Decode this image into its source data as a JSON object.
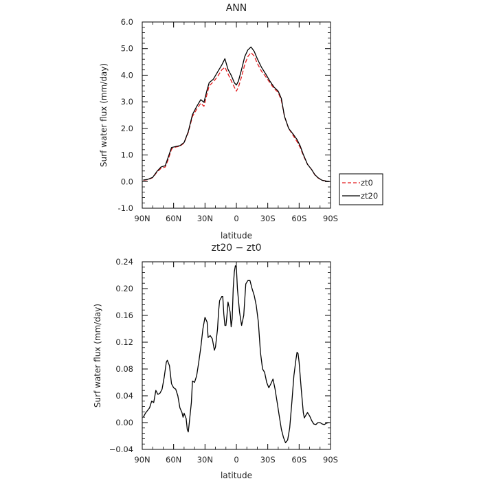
{
  "chart_data": [
    {
      "type": "line",
      "title": "ANN",
      "xlabel": "latitude",
      "ylabel": "Surf water flux (mm/day)",
      "xlim": [
        90,
        -90
      ],
      "ylim": [
        -1.0,
        6.0
      ],
      "x_ticks": [
        90,
        60,
        30,
        0,
        -30,
        -60,
        -90
      ],
      "x_tick_labels": [
        "90N",
        "60N",
        "30N",
        "0",
        "30S",
        "60S",
        "90S"
      ],
      "y_ticks": [
        -1.0,
        0.0,
        1.0,
        2.0,
        3.0,
        4.0,
        5.0,
        6.0
      ],
      "y_tick_labels": [
        "-1.0",
        "0.0",
        "1.0",
        "2.0",
        "3.0",
        "4.0",
        "5.0",
        "6.0"
      ],
      "legend": {
        "placement": "outside-right"
      },
      "series": [
        {
          "name": "zt0",
          "color": "#e41a1c",
          "dash": "dashed",
          "points": [
            [
              89,
              0.05
            ],
            [
              85,
              0.07
            ],
            [
              80,
              0.15
            ],
            [
              76,
              0.35
            ],
            [
              72,
              0.5
            ],
            [
              68,
              0.55
            ],
            [
              65,
              0.85
            ],
            [
              62,
              1.22
            ],
            [
              58,
              1.3
            ],
            [
              54,
              1.33
            ],
            [
              50,
              1.45
            ],
            [
              46,
              1.85
            ],
            [
              42,
              2.45
            ],
            [
              38,
              2.72
            ],
            [
              34,
              2.95
            ],
            [
              31,
              2.83
            ],
            [
              28,
              3.3
            ],
            [
              26,
              3.6
            ],
            [
              22,
              3.75
            ],
            [
              18,
              3.95
            ],
            [
              14,
              4.2
            ],
            [
              11,
              4.3
            ],
            [
              8,
              4.05
            ],
            [
              5,
              3.8
            ],
            [
              2,
              3.55
            ],
            [
              0,
              3.4
            ],
            [
              -2,
              3.55
            ],
            [
              -5,
              3.95
            ],
            [
              -8,
              4.4
            ],
            [
              -11,
              4.7
            ],
            [
              -14,
              4.85
            ],
            [
              -17,
              4.72
            ],
            [
              -20,
              4.45
            ],
            [
              -24,
              4.15
            ],
            [
              -28,
              3.95
            ],
            [
              -32,
              3.72
            ],
            [
              -36,
              3.5
            ],
            [
              -40,
              3.35
            ],
            [
              -43,
              3.05
            ],
            [
              -46,
              2.45
            ],
            [
              -50,
              2.0
            ],
            [
              -54,
              1.75
            ],
            [
              -58,
              1.5
            ],
            [
              -61,
              1.28
            ],
            [
              -64,
              0.98
            ],
            [
              -68,
              0.65
            ],
            [
              -72,
              0.45
            ],
            [
              -75,
              0.25
            ],
            [
              -78,
              0.14
            ],
            [
              -82,
              0.05
            ],
            [
              -86,
              0.02
            ],
            [
              -89,
              0.01
            ]
          ]
        },
        {
          "name": "zt20",
          "color": "#000000",
          "dash": "solid",
          "points": [
            [
              89,
              0.06
            ],
            [
              85,
              0.08
            ],
            [
              80,
              0.16
            ],
            [
              76,
              0.38
            ],
            [
              72,
              0.55
            ],
            [
              68,
              0.6
            ],
            [
              65,
              0.94
            ],
            [
              62,
              1.28
            ],
            [
              58,
              1.32
            ],
            [
              54,
              1.35
            ],
            [
              50,
              1.47
            ],
            [
              46,
              1.88
            ],
            [
              42,
              2.52
            ],
            [
              38,
              2.82
            ],
            [
              34,
              3.08
            ],
            [
              31,
              2.98
            ],
            [
              28,
              3.45
            ],
            [
              26,
              3.72
            ],
            [
              22,
              3.85
            ],
            [
              18,
              4.12
            ],
            [
              14,
              4.38
            ],
            [
              11,
              4.62
            ],
            [
              8,
              4.22
            ],
            [
              5,
              4.0
            ],
            [
              2,
              3.72
            ],
            [
              0,
              3.63
            ],
            [
              -2,
              3.78
            ],
            [
              -5,
              4.22
            ],
            [
              -8,
              4.7
            ],
            [
              -11,
              4.95
            ],
            [
              -14,
              5.06
            ],
            [
              -17,
              4.9
            ],
            [
              -20,
              4.62
            ],
            [
              -24,
              4.3
            ],
            [
              -28,
              4.05
            ],
            [
              -32,
              3.78
            ],
            [
              -36,
              3.55
            ],
            [
              -40,
              3.4
            ],
            [
              -43,
              3.12
            ],
            [
              -46,
              2.45
            ],
            [
              -50,
              2.0
            ],
            [
              -54,
              1.8
            ],
            [
              -58,
              1.58
            ],
            [
              -61,
              1.34
            ],
            [
              -64,
              1.02
            ],
            [
              -68,
              0.65
            ],
            [
              -72,
              0.45
            ],
            [
              -75,
              0.26
            ],
            [
              -78,
              0.15
            ],
            [
              -82,
              0.05
            ],
            [
              -86,
              0.02
            ],
            [
              -89,
              0.01
            ]
          ]
        }
      ]
    },
    {
      "type": "line",
      "title": "zt20 − zt0",
      "xlabel": "latitude",
      "ylabel": "Surf water flux (mm/day)",
      "xlim": [
        90,
        -90
      ],
      "ylim": [
        -0.04,
        0.24
      ],
      "x_ticks": [
        90,
        60,
        30,
        0,
        -30,
        -60,
        -90
      ],
      "x_tick_labels": [
        "90N",
        "60N",
        "30N",
        "0",
        "30S",
        "60S",
        "90S"
      ],
      "y_ticks": [
        -0.04,
        0.0,
        0.04,
        0.08,
        0.12,
        0.16,
        0.2,
        0.24
      ],
      "y_tick_labels": [
        "−0.04",
        "0.00",
        "0.04",
        "0.08",
        "0.12",
        "0.16",
        "0.20",
        "0.24"
      ],
      "series": [
        {
          "color": "#000000",
          "dash": "solid",
          "points": [
            [
              89,
              0.008
            ],
            [
              87,
              0.014
            ],
            [
              85,
              0.018
            ],
            [
              83,
              0.022
            ],
            [
              81,
              0.032
            ],
            [
              79,
              0.03
            ],
            [
              77,
              0.048
            ],
            [
              75,
              0.042
            ],
            [
              73,
              0.044
            ],
            [
              71,
              0.05
            ],
            [
              69,
              0.068
            ],
            [
              67,
              0.09
            ],
            [
              66,
              0.093
            ],
            [
              64,
              0.085
            ],
            [
              62,
              0.058
            ],
            [
              60,
              0.052
            ],
            [
              58,
              0.05
            ],
            [
              56,
              0.04
            ],
            [
              54,
              0.022
            ],
            [
              52,
              0.015
            ],
            [
              51,
              0.008
            ],
            [
              50,
              0.014
            ],
            [
              48,
              0.006
            ],
            [
              47,
              -0.01
            ],
            [
              46,
              -0.014
            ],
            [
              45,
              0.0
            ],
            [
              43,
              0.03
            ],
            [
              42,
              0.062
            ],
            [
              40,
              0.06
            ],
            [
              38,
              0.07
            ],
            [
              36,
              0.09
            ],
            [
              34,
              0.112
            ],
            [
              32,
              0.14
            ],
            [
              30,
              0.157
            ],
            [
              28,
              0.15
            ],
            [
              27,
              0.127
            ],
            [
              25,
              0.13
            ],
            [
              23,
              0.125
            ],
            [
              21,
              0.108
            ],
            [
              20,
              0.113
            ],
            [
              18,
              0.14
            ],
            [
              17,
              0.166
            ],
            [
              16,
              0.182
            ],
            [
              14,
              0.188
            ],
            [
              13,
              0.188
            ],
            [
              12,
              0.162
            ],
            [
              11,
              0.145
            ],
            [
              10,
              0.145
            ],
            [
              9,
              0.16
            ],
            [
              8,
              0.18
            ],
            [
              6,
              0.165
            ],
            [
              5,
              0.143
            ],
            [
              4,
              0.155
            ],
            [
              3,
              0.2
            ],
            [
              2,
              0.225
            ],
            [
              1,
              0.234
            ],
            [
              0,
              0.232
            ],
            [
              -1,
              0.2
            ],
            [
              -3,
              0.165
            ],
            [
              -5,
              0.145
            ],
            [
              -7,
              0.16
            ],
            [
              -9,
              0.207
            ],
            [
              -11,
              0.212
            ],
            [
              -13,
              0.212
            ],
            [
              -15,
              0.2
            ],
            [
              -17,
              0.19
            ],
            [
              -19,
              0.175
            ],
            [
              -21,
              0.15
            ],
            [
              -23,
              0.105
            ],
            [
              -25,
              0.08
            ],
            [
              -27,
              0.075
            ],
            [
              -29,
              0.06
            ],
            [
              -31,
              0.052
            ],
            [
              -33,
              0.058
            ],
            [
              -35,
              0.065
            ],
            [
              -37,
              0.05
            ],
            [
              -39,
              0.03
            ],
            [
              -41,
              0.01
            ],
            [
              -43,
              -0.01
            ],
            [
              -45,
              -0.022
            ],
            [
              -47,
              -0.03
            ],
            [
              -49,
              -0.026
            ],
            [
              -51,
              -0.008
            ],
            [
              -53,
              0.03
            ],
            [
              -55,
              0.07
            ],
            [
              -57,
              0.095
            ],
            [
              -58,
              0.105
            ],
            [
              -59,
              0.103
            ],
            [
              -60,
              0.09
            ],
            [
              -62,
              0.05
            ],
            [
              -64,
              0.015
            ],
            [
              -65,
              0.007
            ],
            [
              -66,
              0.01
            ],
            [
              -68,
              0.015
            ],
            [
              -70,
              0.01
            ],
            [
              -72,
              0.003
            ],
            [
              -74,
              -0.002
            ],
            [
              -76,
              -0.003
            ],
            [
              -78,
              0.0
            ],
            [
              -80,
              0.0
            ],
            [
              -82,
              -0.002
            ],
            [
              -84,
              -0.003
            ],
            [
              -86,
              -0.001
            ],
            [
              -88,
              0.0
            ],
            [
              -89,
              0.0
            ]
          ]
        }
      ]
    }
  ]
}
